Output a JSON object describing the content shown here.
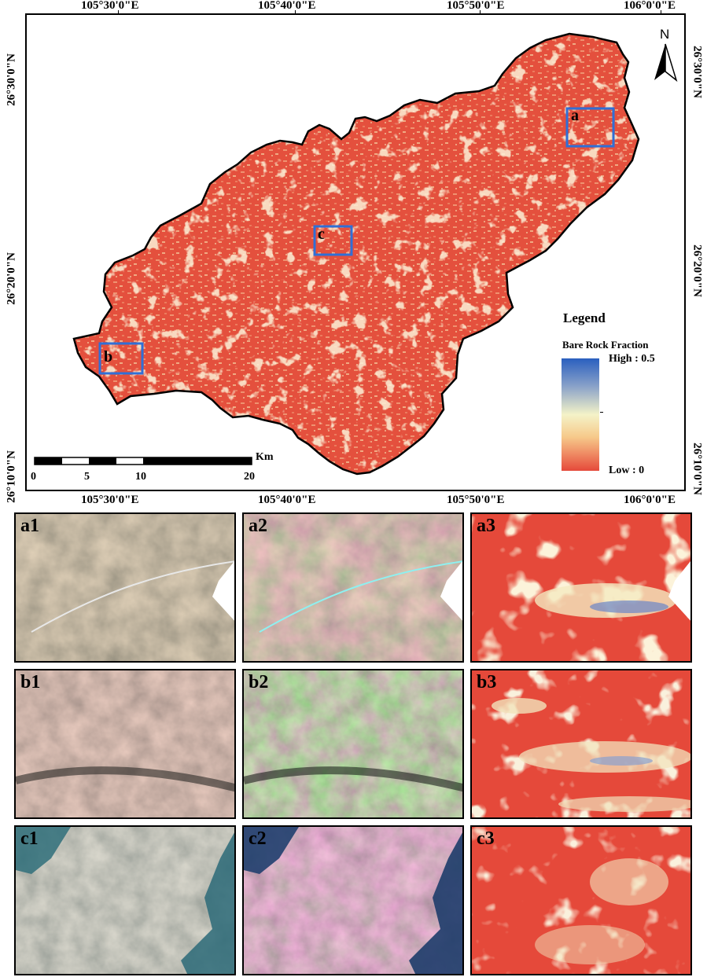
{
  "map": {
    "top_lon_labels": [
      "105°30'0\"E",
      "105°40'0\"E",
      "105°50'0\"E",
      "106°0'0\"E"
    ],
    "bottom_lon_labels": [
      "105°30'0\"E",
      "105°40'0\"E",
      "105°50'0\"E",
      "106°0'0\"E"
    ],
    "left_lat_labels": [
      "26°30'0\"N",
      "26°20'0\"N",
      "26°10'0\"N"
    ],
    "right_lat_labels": [
      "26°30'0\"N",
      "26°20'0\"N",
      "26°10'0\"N"
    ],
    "north_label": "N",
    "box_labels": [
      "a",
      "b",
      "c"
    ],
    "legend": {
      "title": "Legend",
      "subtitle": "Bare Rock Fraction",
      "high_label": "High : 0.5",
      "low_label": "Low : 0"
    },
    "scale_bar": {
      "unit": "Km",
      "ticks": [
        "0",
        "5",
        "10",
        "20"
      ]
    },
    "colors": {
      "low": "#e5493a",
      "mid": "#f4f3c8",
      "high": "#2a5fbf",
      "box": "#2f6fd6"
    }
  },
  "panels": [
    {
      "label": "a1",
      "kind": "true-color"
    },
    {
      "label": "a2",
      "kind": "false-color"
    },
    {
      "label": "a3",
      "kind": "fraction"
    },
    {
      "label": "b1",
      "kind": "true-color"
    },
    {
      "label": "b2",
      "kind": "false-color"
    },
    {
      "label": "b3",
      "kind": "fraction"
    },
    {
      "label": "c1",
      "kind": "true-color"
    },
    {
      "label": "c2",
      "kind": "false-color"
    },
    {
      "label": "c3",
      "kind": "fraction"
    }
  ]
}
